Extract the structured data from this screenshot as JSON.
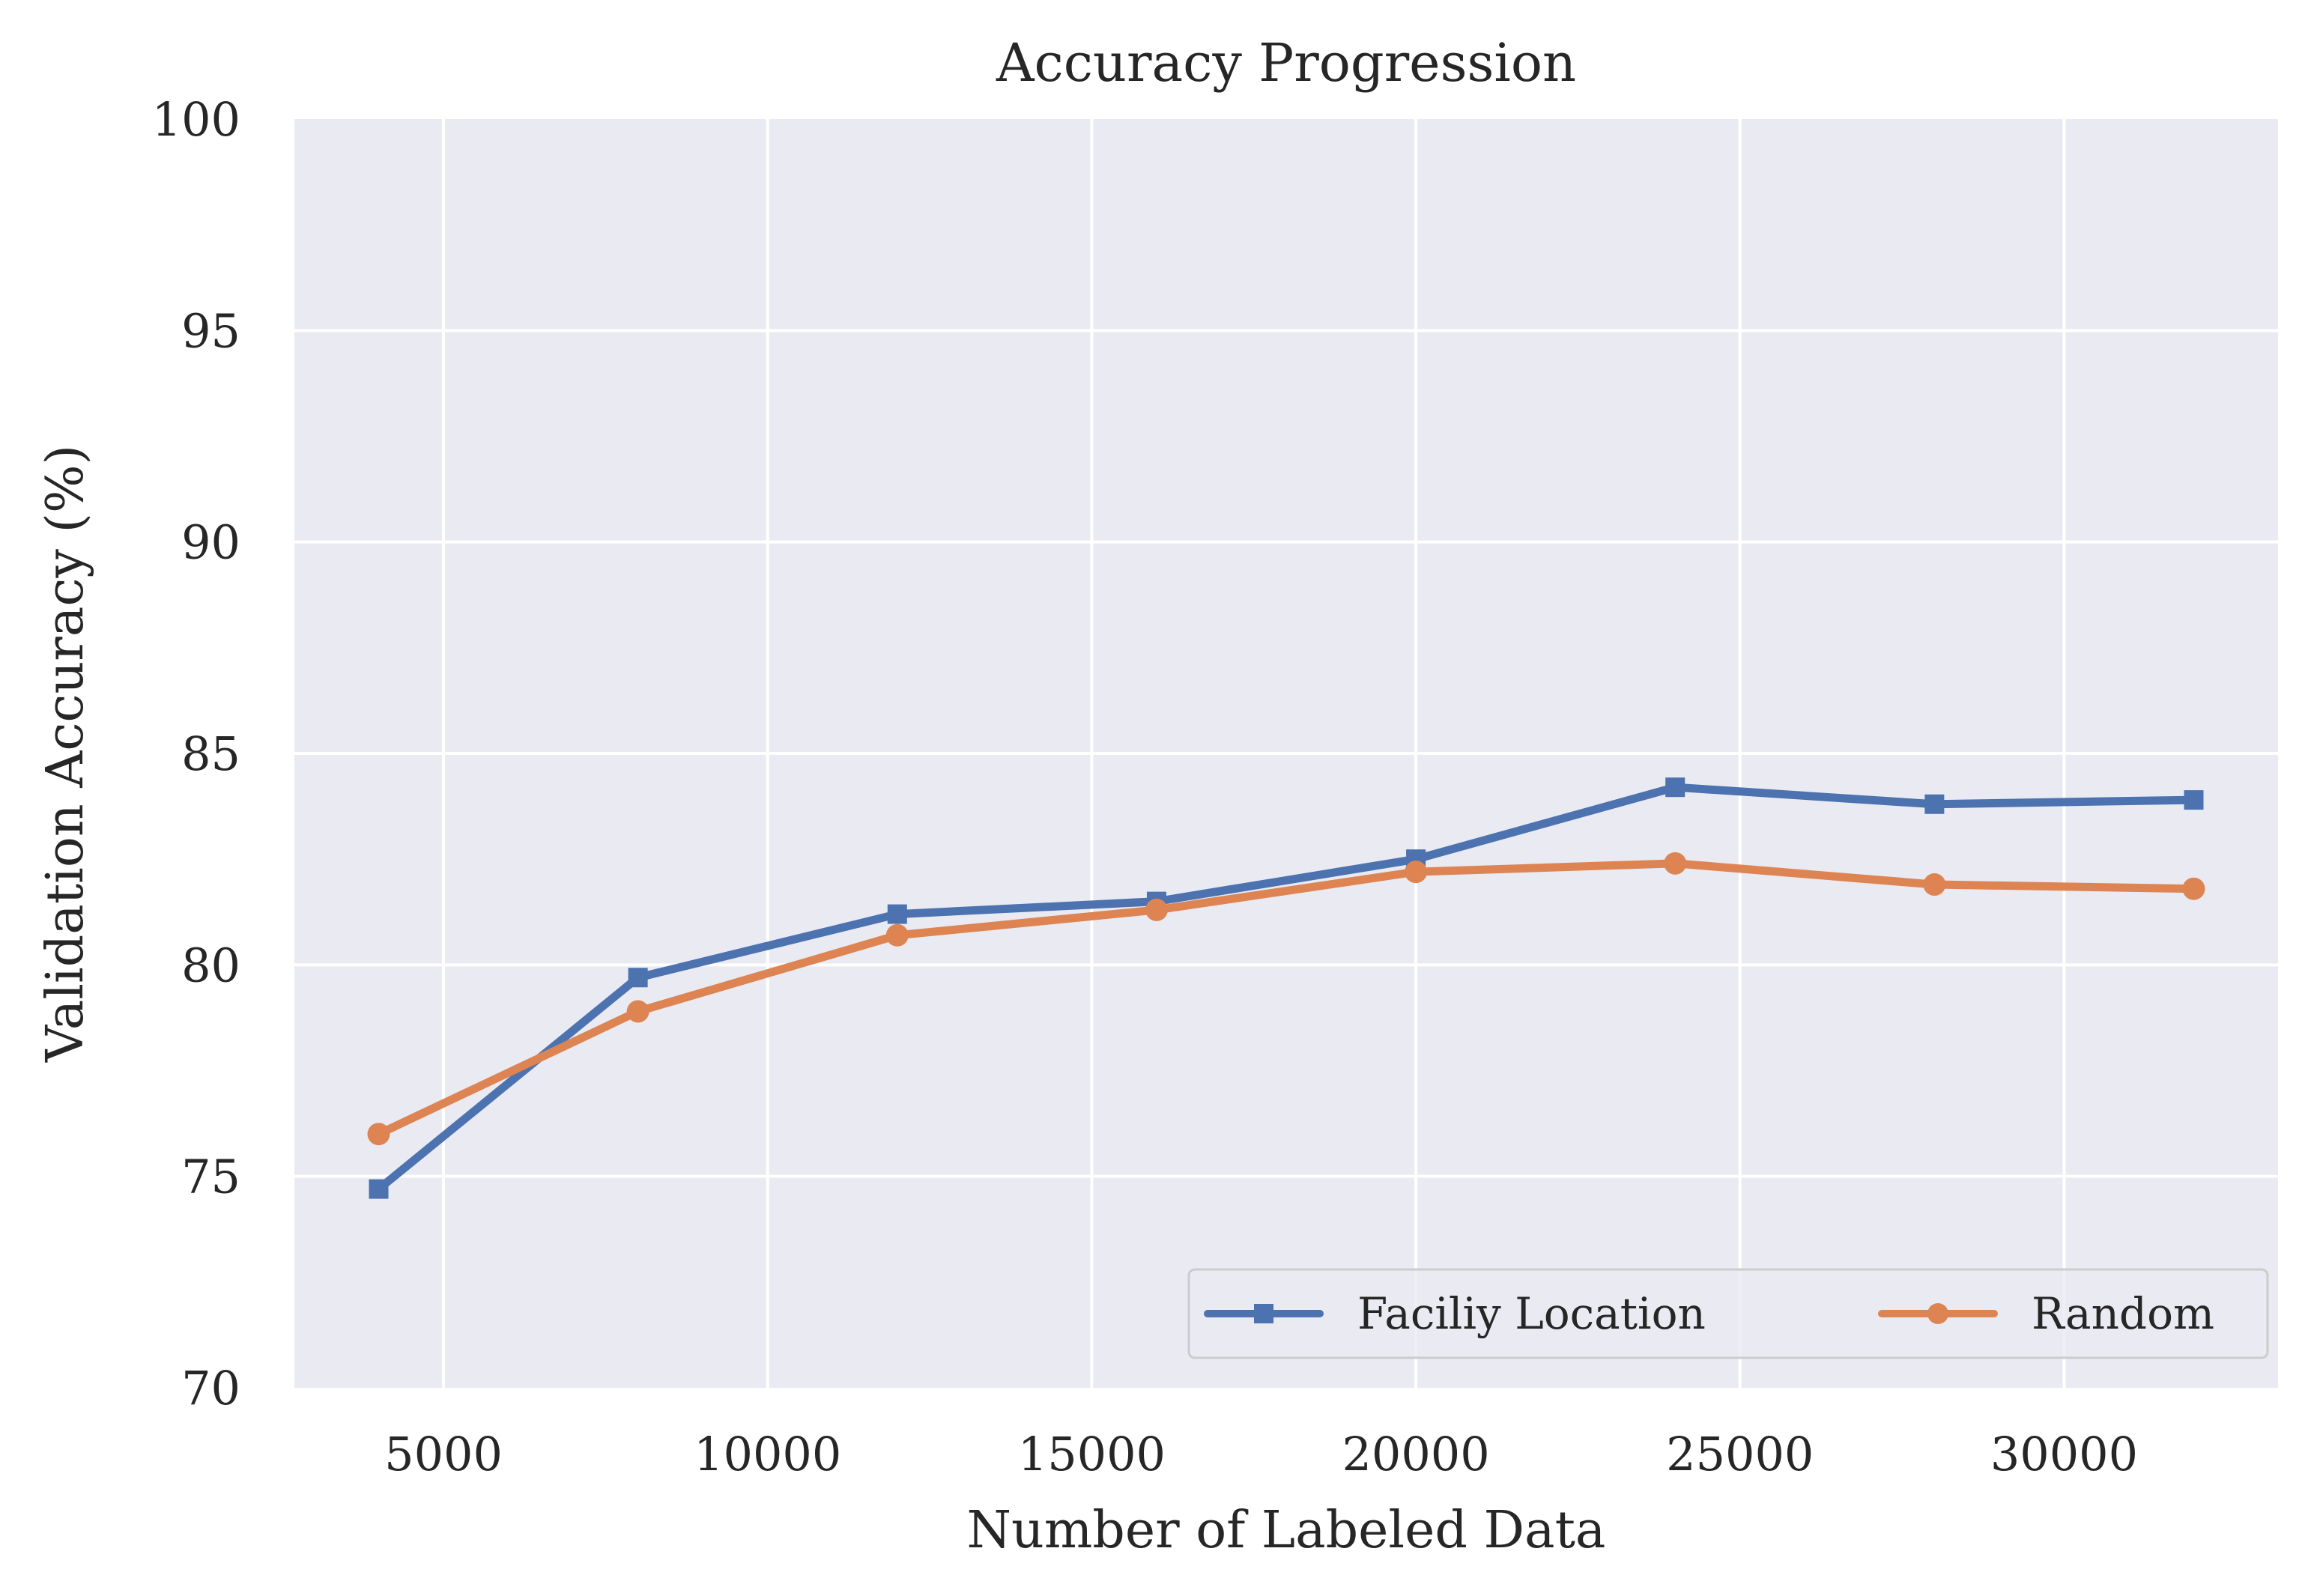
{
  "chart_data": {
    "type": "line",
    "title": "Accuracy Progression",
    "xlabel": "Number of Labeled Data",
    "ylabel": "Validation Accuracy (%)",
    "xlim": [
      2700,
      33300
    ],
    "ylim": [
      70,
      100
    ],
    "xticks": [
      5000,
      10000,
      15000,
      20000,
      25000,
      30000
    ],
    "yticks": [
      70,
      75,
      80,
      85,
      90,
      95,
      100
    ],
    "grid": true,
    "legend_position": "lower-right",
    "x": [
      4000,
      8000,
      12000,
      16000,
      20000,
      24000,
      28000,
      32000
    ],
    "series": [
      {
        "name": "Faciliy Location",
        "values": [
          74.7,
          79.7,
          81.2,
          81.5,
          82.5,
          84.2,
          83.8,
          83.9
        ],
        "color": "#4c72b0",
        "marker": "square"
      },
      {
        "name": "Random",
        "values": [
          76.0,
          78.9,
          80.7,
          81.3,
          82.2,
          82.4,
          81.9,
          81.8
        ],
        "color": "#dd8452",
        "marker": "circle"
      }
    ],
    "background_color": "#eaeaf2",
    "grid_color": "#ffffff"
  }
}
